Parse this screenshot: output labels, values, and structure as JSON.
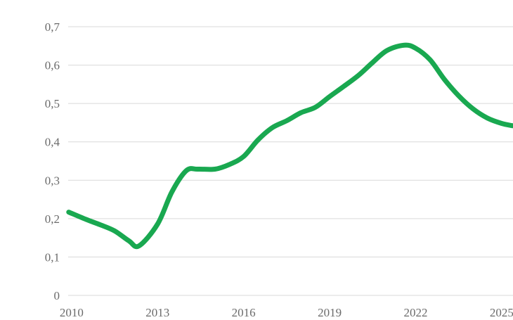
{
  "chart": {
    "background_color": "#ffffff",
    "gridline_color": "#d9d9d9",
    "tick_label_color": "#6b6b6b",
    "page_edge_color": "#eaedef"
  },
  "chart_data": {
    "type": "line",
    "title": "",
    "xlabel": "",
    "ylabel": "",
    "legend": "none",
    "grid": true,
    "decimal_separator": ",",
    "x_domain": [
      2009.88,
      2025.42
    ],
    "y_domain": [
      0,
      0.7
    ],
    "x_ticks": [
      {
        "label": "2010",
        "value": 2010
      },
      {
        "label": "2013",
        "value": 2013
      },
      {
        "label": "2016",
        "value": 2016
      },
      {
        "label": "2019",
        "value": 2019
      },
      {
        "label": "2022",
        "value": 2022
      },
      {
        "label": "2025",
        "value": 2025
      }
    ],
    "y_ticks": [
      {
        "label": "0",
        "value": 0.0
      },
      {
        "label": "0,1",
        "value": 0.1
      },
      {
        "label": "0,2",
        "value": 0.2
      },
      {
        "label": "0,3",
        "value": 0.3
      },
      {
        "label": "0,4",
        "value": 0.4
      },
      {
        "label": "0,5",
        "value": 0.5
      },
      {
        "label": "0,6",
        "value": 0.6
      },
      {
        "label": "0,7",
        "value": 0.7
      }
    ],
    "series": [
      {
        "name": "value",
        "color": "#19a850",
        "stroke_width": 7,
        "smooth": true,
        "points": [
          [
            2009.9,
            0.217
          ],
          [
            2010.5,
            0.198
          ],
          [
            2011.0,
            0.184
          ],
          [
            2011.5,
            0.168
          ],
          [
            2012.0,
            0.142
          ],
          [
            2012.35,
            0.129
          ],
          [
            2013.0,
            0.186
          ],
          [
            2013.5,
            0.27
          ],
          [
            2014.0,
            0.325
          ],
          [
            2014.4,
            0.329
          ],
          [
            2015.0,
            0.329
          ],
          [
            2015.5,
            0.341
          ],
          [
            2016.0,
            0.362
          ],
          [
            2016.5,
            0.405
          ],
          [
            2017.0,
            0.437
          ],
          [
            2017.5,
            0.455
          ],
          [
            2018.0,
            0.476
          ],
          [
            2018.5,
            0.49
          ],
          [
            2019.0,
            0.518
          ],
          [
            2019.5,
            0.545
          ],
          [
            2020.0,
            0.573
          ],
          [
            2020.5,
            0.607
          ],
          [
            2021.0,
            0.638
          ],
          [
            2021.6,
            0.652
          ],
          [
            2022.0,
            0.644
          ],
          [
            2022.5,
            0.614
          ],
          [
            2023.0,
            0.563
          ],
          [
            2023.5,
            0.52
          ],
          [
            2024.0,
            0.486
          ],
          [
            2024.5,
            0.462
          ],
          [
            2025.0,
            0.448
          ],
          [
            2025.38,
            0.442
          ]
        ]
      }
    ]
  }
}
